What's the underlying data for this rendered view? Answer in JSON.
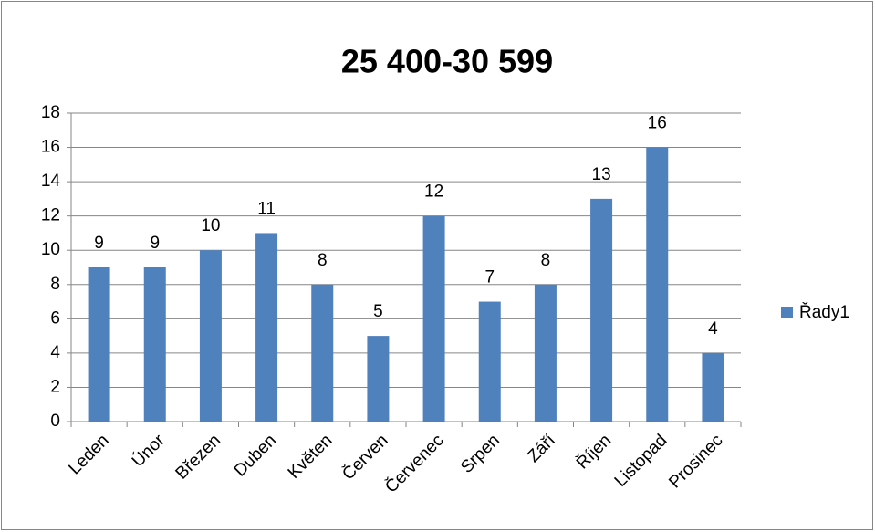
{
  "chart_data": {
    "type": "bar",
    "title": "25 400-30 599",
    "categories": [
      "Leden",
      "Únor",
      "Březen",
      "Duben",
      "Květen",
      "Červen",
      "Červenec",
      "Srpen",
      "Září",
      "Říjen",
      "Listopad",
      "Prosinec"
    ],
    "series": [
      {
        "name": "Řady1",
        "color": "#4f81bd",
        "values": [
          9,
          9,
          10,
          11,
          8,
          5,
          12,
          7,
          8,
          13,
          16,
          4
        ]
      }
    ],
    "ylim": [
      0,
      18
    ],
    "yticks": [
      0,
      2,
      4,
      6,
      8,
      10,
      12,
      14,
      16,
      18
    ],
    "grid": true,
    "legend": "right"
  }
}
